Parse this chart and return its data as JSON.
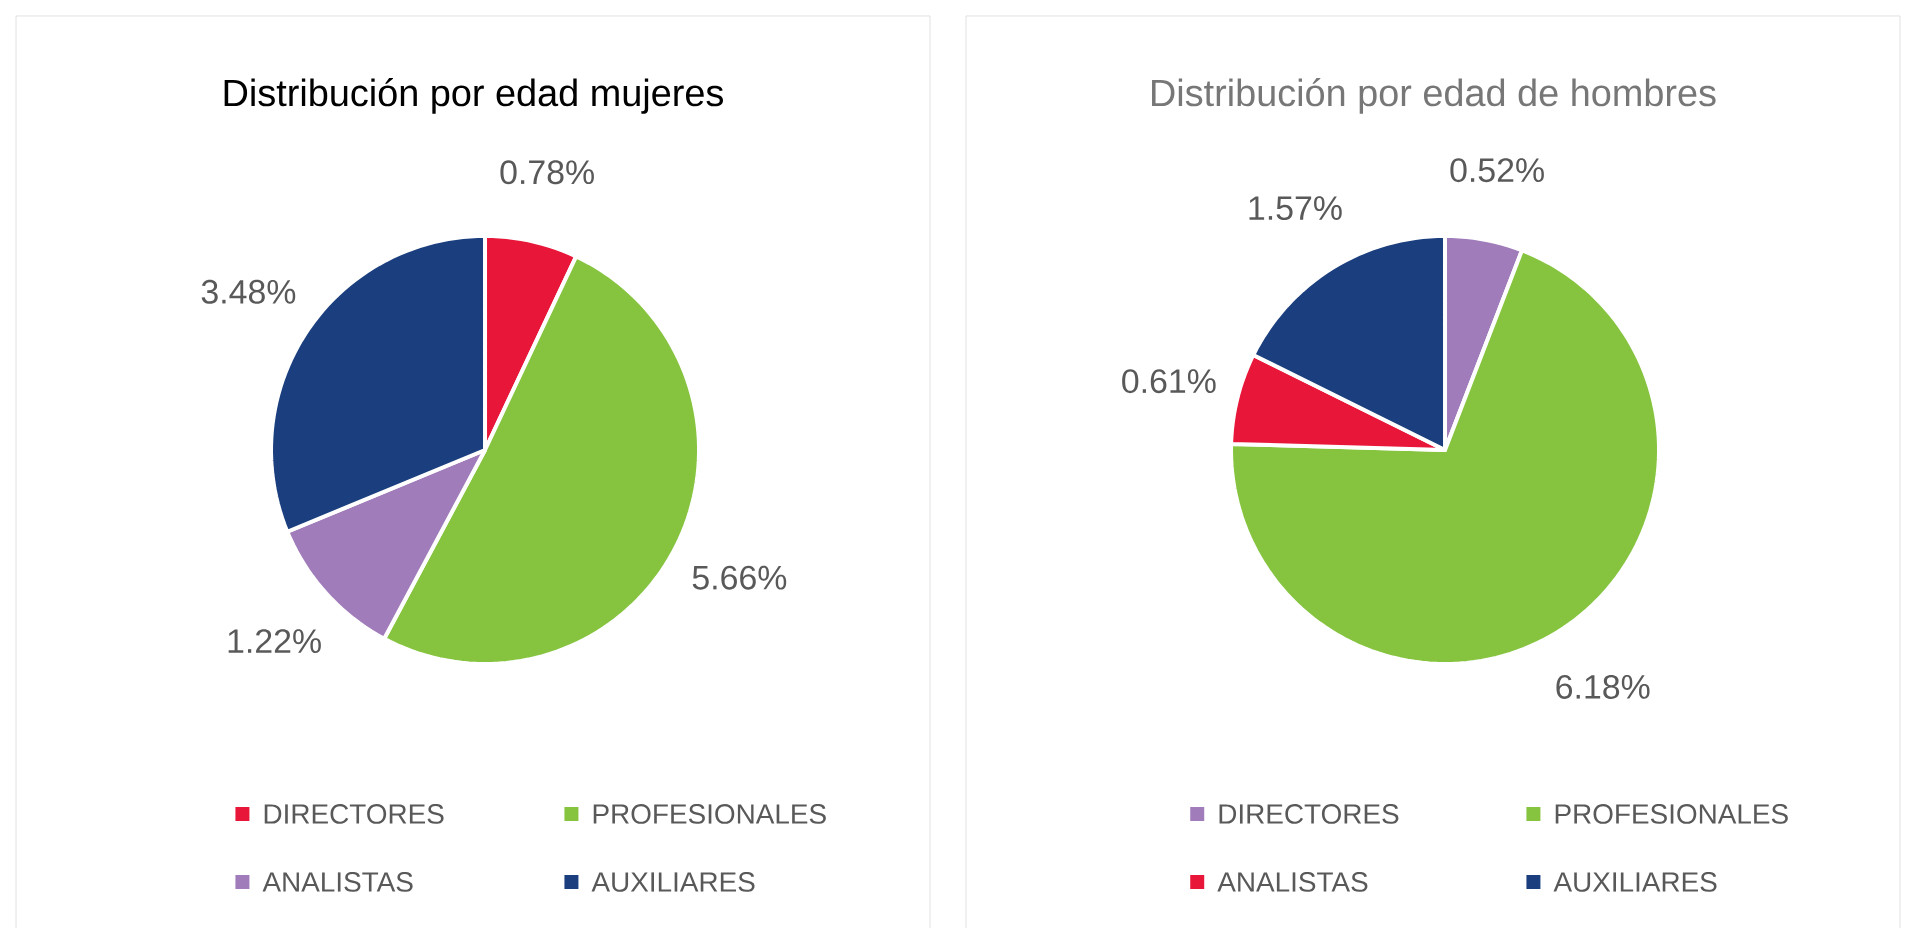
{
  "chart_data": [
    {
      "type": "pie",
      "title": "Distribución por edad mujeres",
      "categories": [
        "DIRECTORES",
        "PROFESIONALES",
        "ANALISTAS",
        "AUXILIARES"
      ],
      "values": [
        0.78,
        5.66,
        1.22,
        3.48
      ],
      "value_labels": [
        "0.78%",
        "5.66%",
        "1.22%",
        "3.48%"
      ],
      "colors": [
        "#e8173a",
        "#86c440",
        "#a07cba",
        "#1b3f7e"
      ],
      "legend": "bottom"
    },
    {
      "type": "pie",
      "title": "Distribución por edad de hombres",
      "categories": [
        "DIRECTORES",
        "PROFESIONALES",
        "ANALISTAS",
        "AUXILIARES"
      ],
      "values": [
        0.52,
        6.18,
        0.61,
        1.57
      ],
      "value_labels": [
        "0.52%",
        "6.18%",
        "0.61%",
        "1.57%"
      ],
      "colors": [
        "#a07cba",
        "#86c440",
        "#e8173a",
        "#1b3f7e"
      ],
      "legend": "bottom"
    }
  ]
}
